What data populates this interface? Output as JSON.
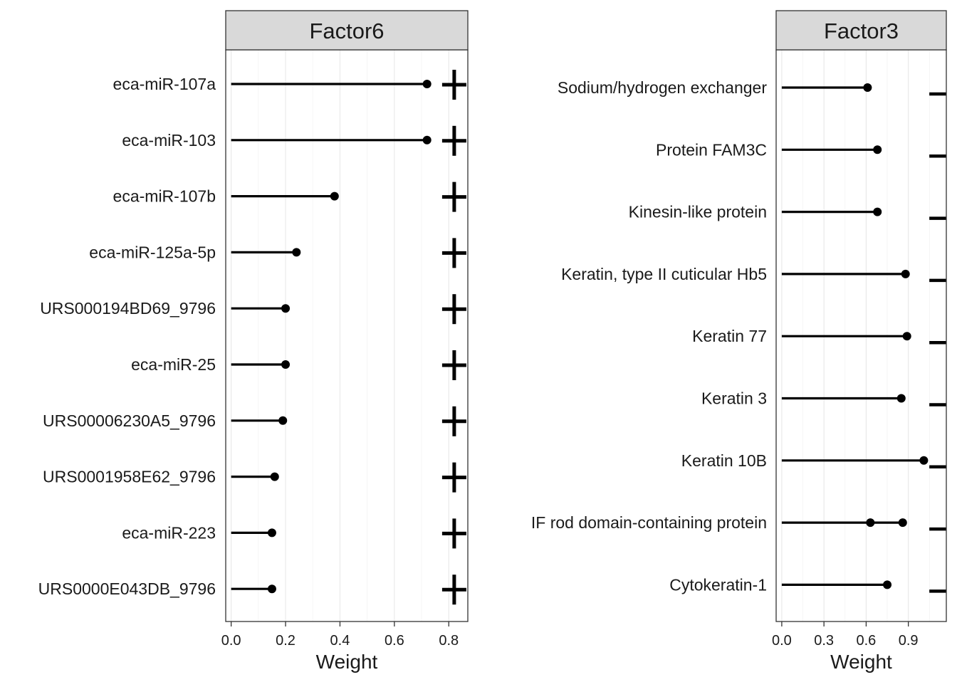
{
  "chart_data": [
    {
      "type": "lollipop",
      "title": "Factor6",
      "xlabel": "Weight",
      "xlim": [
        -0.02,
        0.87
      ],
      "xticks": [
        0.0,
        0.2,
        0.4,
        0.6,
        0.8
      ],
      "tick_labels": [
        "0.0",
        "0.2",
        "0.4",
        "0.6",
        "0.8"
      ],
      "grid": true,
      "sign_marker": "+",
      "sign_marker_x": 0.82,
      "categories": [
        "eca-miR-107a",
        "eca-miR-103",
        "eca-miR-107b",
        "eca-miR-125a-5p",
        "URS000194BD69_9796",
        "eca-miR-25",
        "URS00006230A5_9796",
        "URS0001958E62_9796",
        "eca-miR-223",
        "URS0000E043DB_9796"
      ],
      "values": [
        0.72,
        0.72,
        0.38,
        0.24,
        0.2,
        0.2,
        0.19,
        0.16,
        0.15,
        0.15
      ]
    },
    {
      "type": "lollipop",
      "title": "Factor3",
      "xlabel": "Weight",
      "xlim": [
        -0.04,
        1.17
      ],
      "xticks": [
        0.0,
        0.3,
        0.6,
        0.9
      ],
      "tick_labels": [
        "0.0",
        "0.3",
        "0.6",
        "0.9"
      ],
      "grid": true,
      "sign_marker": "−",
      "sign_marker_x": 1.11,
      "categories": [
        "Sodium/hydrogen exchanger",
        "Protein FAM3C",
        "Kinesin-like protein",
        "Keratin, type II cuticular Hb5",
        "Keratin 77",
        "Keratin 3",
        "Keratin 10B",
        "IF rod domain-containing protein",
        "Cytokeratin-1"
      ],
      "values": [
        [
          0.61
        ],
        [
          0.68
        ],
        [
          0.68
        ],
        [
          0.88
        ],
        [
          0.89
        ],
        [
          0.85
        ],
        [
          1.01
        ],
        [
          0.63,
          0.86
        ],
        [
          0.75
        ]
      ]
    }
  ]
}
